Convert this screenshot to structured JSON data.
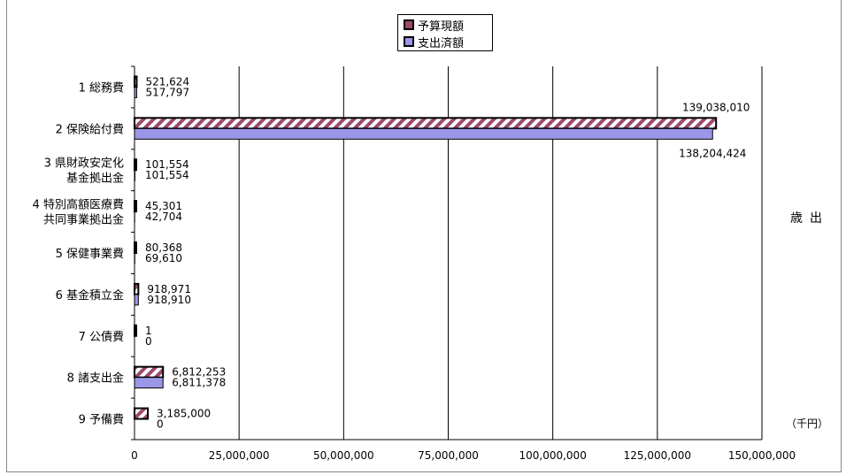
{
  "legend": {
    "budget_label": "予算現額",
    "spent_label": "支出済額"
  },
  "side_label": "歳出",
  "unit_label": "（千円）",
  "colors": {
    "budget_stripe": "#9b4a6b",
    "spent_fill": "#9a97e8",
    "grid": "#000000"
  },
  "chart_data": {
    "type": "bar",
    "orientation": "horizontal",
    "categories": [
      "1 総務費",
      "2 保険給付費",
      "3 県財政安定化\n基金拠出金",
      "4 特別高額医療費\n共同事業拠出金",
      "5 保健事業費",
      "6 基金積立金",
      "7 公債費",
      "8 諸支出金",
      "9 予備費"
    ],
    "series": [
      {
        "name": "予算現額",
        "values": [
          521624,
          139038010,
          101554,
          45301,
          80368,
          918971,
          1,
          6812253,
          3185000
        ]
      },
      {
        "name": "支出済額",
        "values": [
          517797,
          138204424,
          101554,
          42704,
          69610,
          918910,
          0,
          6811378,
          0
        ]
      }
    ],
    "value_labels": {
      "budget": [
        "521,624",
        "139,038,010",
        "101,554",
        "45,301",
        "80,368",
        "918,971",
        "1",
        "6,812,253",
        "3,185,000"
      ],
      "spent": [
        "517,797",
        "138,204,424",
        "101,554",
        "42,704",
        "69,610",
        "918,910",
        "0",
        "6,811,378",
        "0"
      ]
    },
    "xlim": [
      0,
      150000000
    ],
    "xticks": [
      0,
      25000000,
      50000000,
      75000000,
      100000000,
      125000000,
      150000000
    ],
    "xtick_labels": [
      "0",
      "25,000,000",
      "50,000,000",
      "75,000,000",
      "100,000,000",
      "125,000,000",
      "150,000,000"
    ],
    "grid": true,
    "legend_position": "top-center"
  }
}
